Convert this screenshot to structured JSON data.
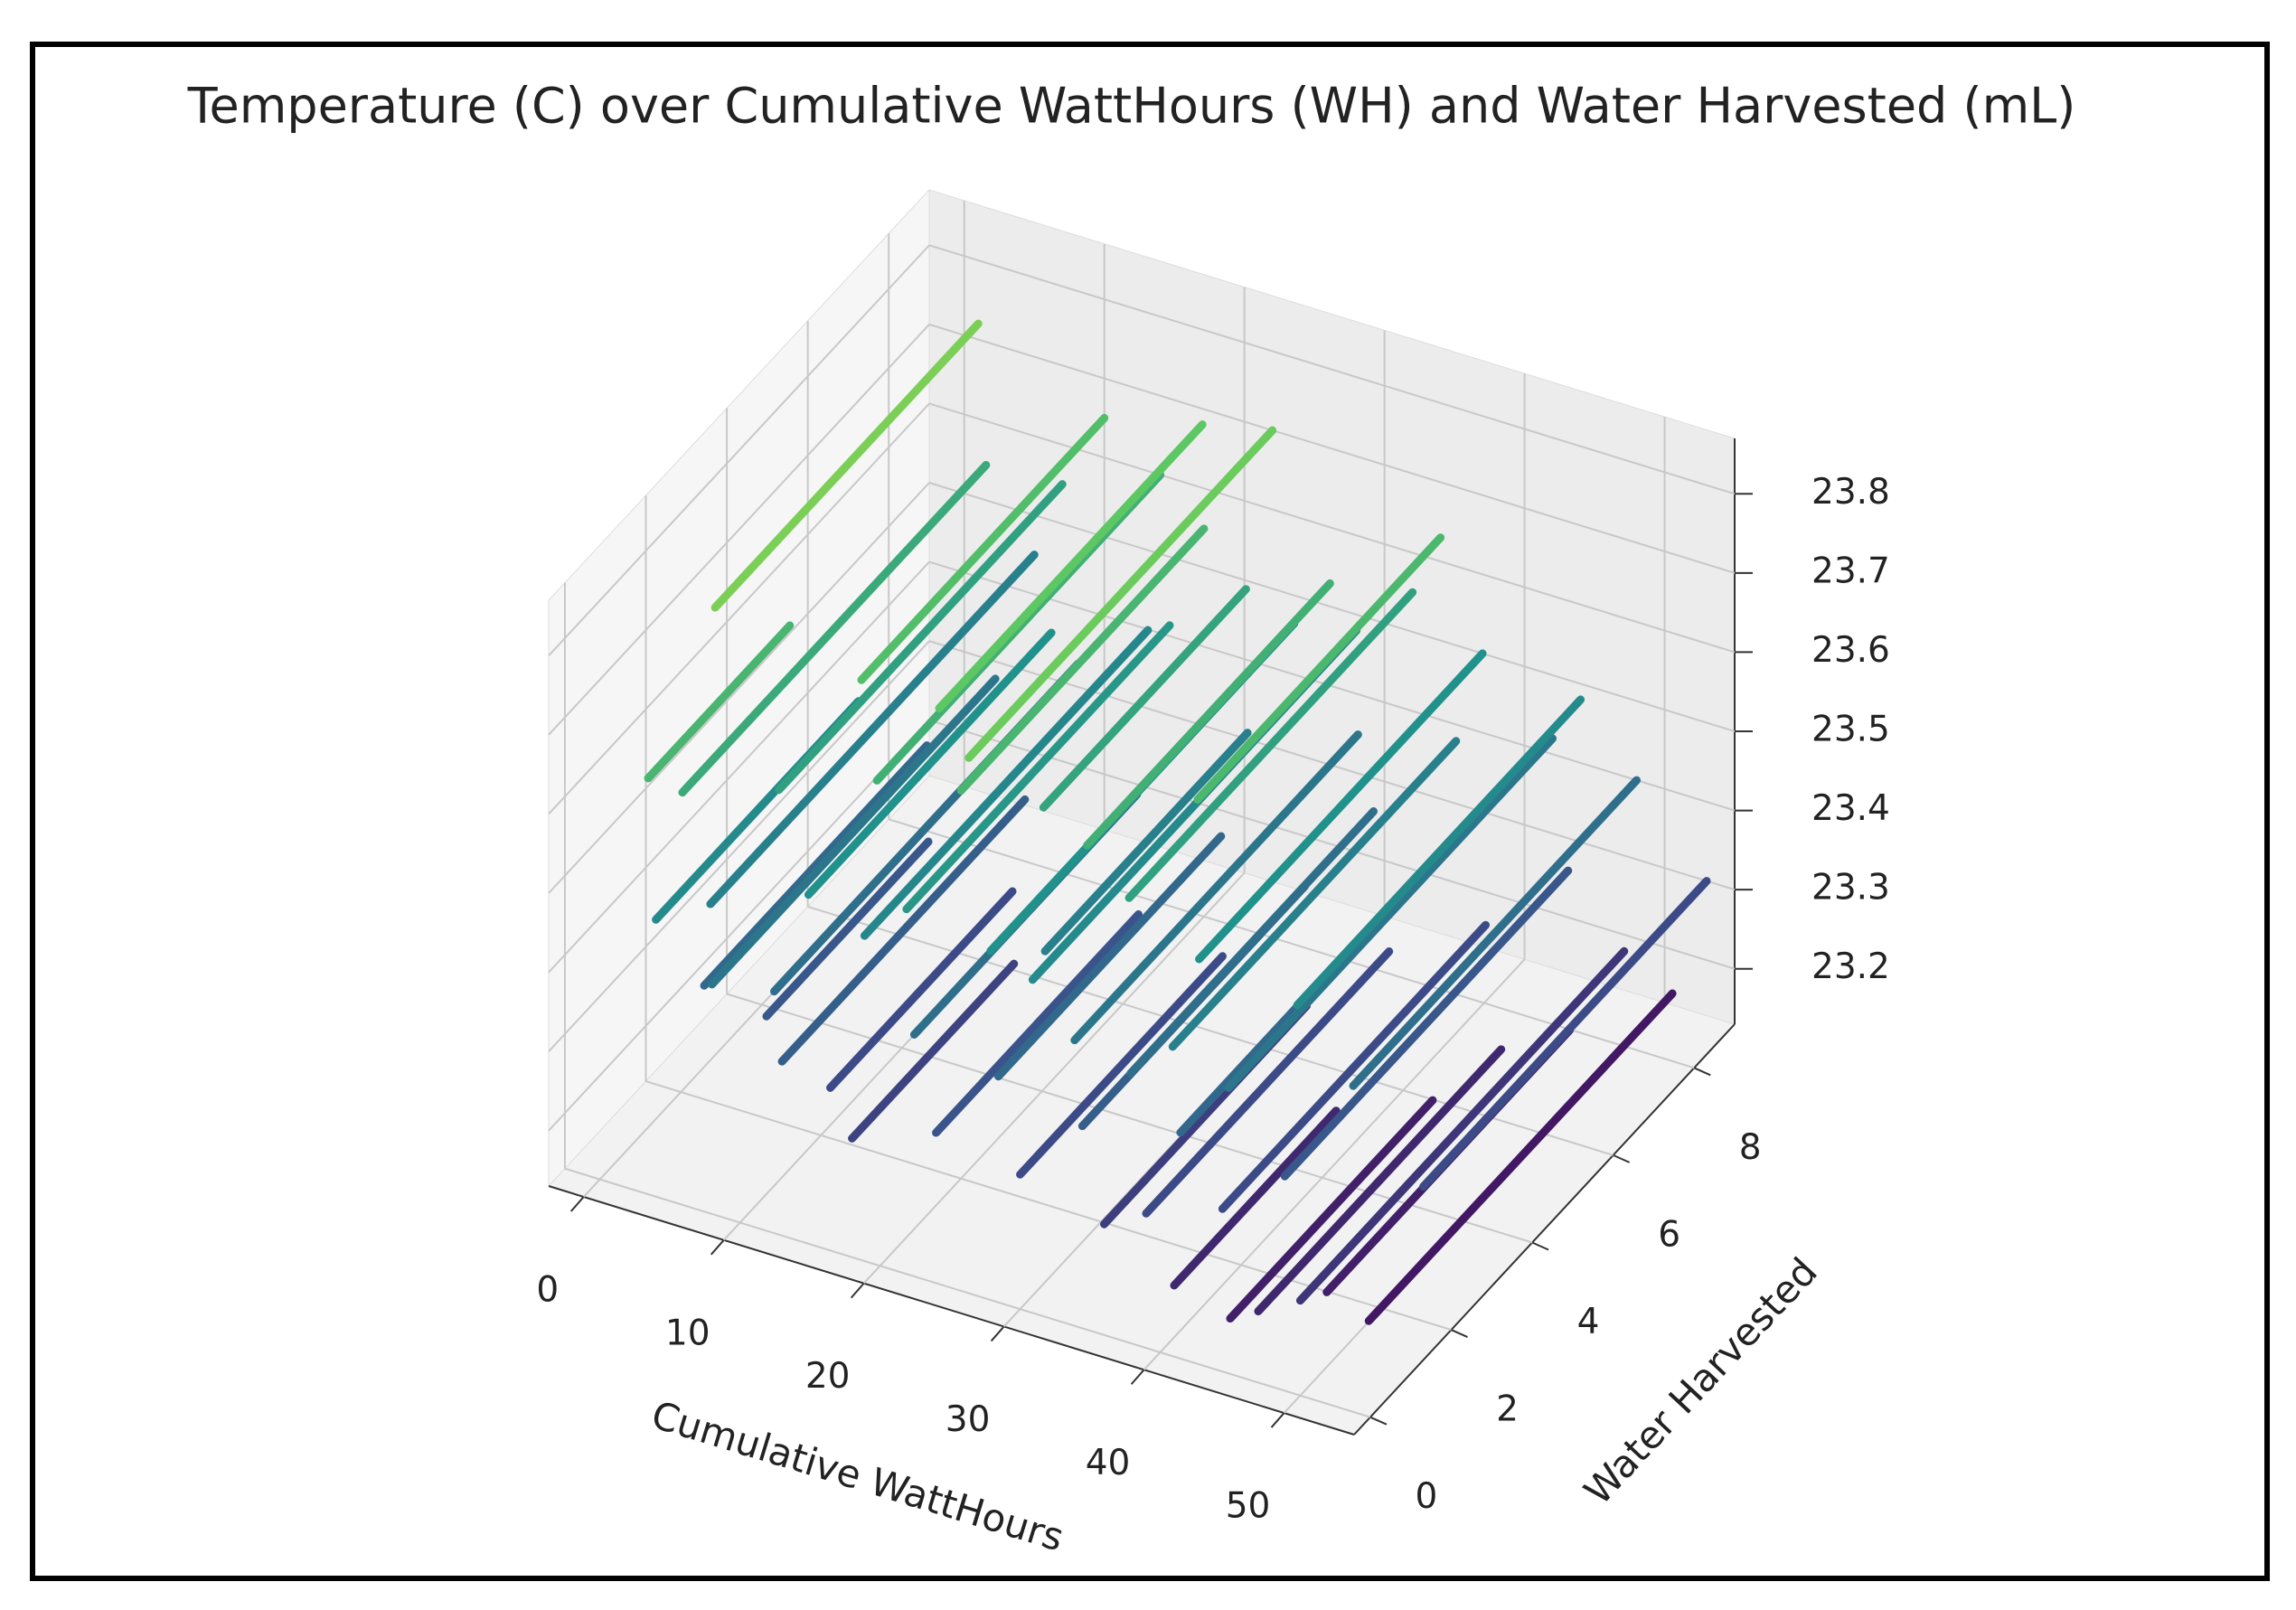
{
  "chart_data": {
    "type": "line3d",
    "title": "Temperature (C) over Cumulative WattHours (WH) and Water Harvested (mL)",
    "xlabel": "Cumulative WattHours",
    "ylabel": "Water Harvested",
    "colormap": "viridis",
    "xlim": [
      -2.5,
      55
    ],
    "xticks": [
      0,
      10,
      20,
      30,
      40,
      50
    ],
    "ylim": [
      -0.4,
      9
    ],
    "yticks": [
      0,
      2,
      4,
      6,
      8
    ],
    "zlim": [
      23.13,
      23.87
    ],
    "zticks": [
      23.2,
      23.3,
      23.4,
      23.5,
      23.6,
      23.7,
      23.8
    ],
    "grid": true,
    "lines": [
      [
        1,
        2.5,
        9,
        23.72
      ],
      [
        2,
        0.5,
        4,
        23.62
      ],
      [
        3,
        1,
        8.5,
        23.58
      ],
      [
        4,
        0,
        5,
        23.48
      ],
      [
        5,
        1,
        9,
        23.45
      ],
      [
        6,
        0.5,
        6,
        23.38
      ],
      [
        7,
        2,
        9,
        23.55
      ],
      [
        8,
        0,
        7,
        23.42
      ],
      [
        9,
        1,
        5,
        23.33
      ],
      [
        10,
        3,
        9,
        23.65
      ],
      [
        11,
        0.5,
        8,
        23.4
      ],
      [
        12,
        1,
        7,
        23.5
      ],
      [
        13,
        0,
        6,
        23.35
      ],
      [
        14,
        2,
        9,
        23.6
      ],
      [
        15,
        0.5,
        5,
        23.3
      ],
      [
        16,
        1,
        8,
        23.47
      ],
      [
        17,
        2.5,
        9,
        23.68
      ],
      [
        18,
        0,
        4,
        23.28
      ],
      [
        19,
        1,
        7.5,
        23.52
      ],
      [
        20,
        2,
        8,
        23.62
      ],
      [
        21,
        0.5,
        6,
        23.4
      ],
      [
        22,
        1.5,
        9,
        23.7
      ],
      [
        23,
        3,
        8,
        23.56
      ],
      [
        24,
        0,
        5,
        23.32
      ],
      [
        25,
        1,
        8.5,
        23.5
      ],
      [
        26,
        2,
        7,
        23.45
      ],
      [
        27,
        0.5,
        6,
        23.38
      ],
      [
        28,
        1,
        9,
        23.48
      ],
      [
        29,
        2,
        8,
        23.6
      ],
      [
        30,
        0,
        5,
        23.3
      ],
      [
        31,
        1,
        8,
        23.42
      ],
      [
        32,
        2,
        9,
        23.55
      ],
      [
        33,
        0.5,
        6,
        23.35
      ],
      [
        34,
        3,
        9,
        23.63
      ],
      [
        35,
        1,
        7,
        23.4
      ],
      [
        36,
        0,
        5,
        23.27
      ],
      [
        37,
        2,
        9,
        23.5
      ],
      [
        38,
        1,
        8,
        23.45
      ],
      [
        39,
        0,
        6,
        23.3
      ],
      [
        40,
        0.5,
        8,
        23.38
      ],
      [
        41,
        0,
        4,
        23.22
      ],
      [
        42,
        1,
        9,
        23.42
      ],
      [
        43,
        0.5,
        7,
        23.3
      ],
      [
        44,
        2,
        9,
        23.48
      ],
      [
        45,
        0,
        5,
        23.2
      ],
      [
        46,
        1,
        8,
        23.33
      ],
      [
        47,
        0,
        6,
        23.22
      ],
      [
        48,
        2,
        9,
        23.4
      ],
      [
        49,
        1,
        7,
        23.2
      ],
      [
        50,
        0,
        8,
        23.25
      ],
      [
        52,
        1,
        8.5,
        23.18
      ],
      [
        53,
        2,
        9,
        23.3
      ]
    ]
  }
}
